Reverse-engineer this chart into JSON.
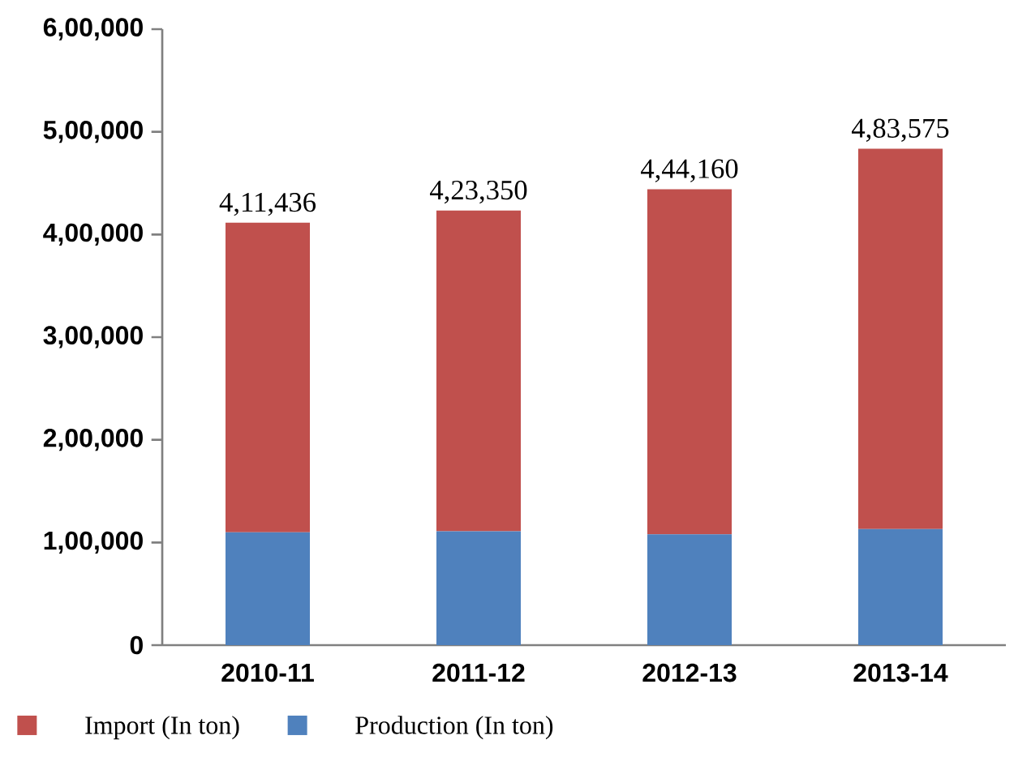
{
  "chart_data": {
    "type": "bar",
    "stacked": true,
    "categories": [
      "2010-11",
      "2011-12",
      "2012-13",
      "2013-14"
    ],
    "series": [
      {
        "name": "Production (In ton)",
        "color": "#4f81bd",
        "values": [
          110000,
          111000,
          108000,
          113000
        ]
      },
      {
        "name": "Import (In ton)",
        "color": "#c0504d",
        "values": [
          301436,
          312350,
          336160,
          370575
        ]
      }
    ],
    "totals": [
      "4,11,436",
      "4,23,350",
      "4,44,160",
      "4,83,575"
    ],
    "ylim": [
      0,
      600000
    ],
    "yticks": [
      0,
      {
        "value": 100000,
        "label": "1,00,000"
      },
      {
        "value": 200000,
        "label": "2,00,000"
      },
      {
        "value": 300000,
        "label": "3,00,000"
      },
      {
        "value": 400000,
        "label": "4,00,000"
      },
      {
        "value": 500000,
        "label": "5,00,000"
      },
      {
        "value": 600000,
        "label": "6,00,000"
      }
    ],
    "legend": "bottom",
    "grid": false
  }
}
